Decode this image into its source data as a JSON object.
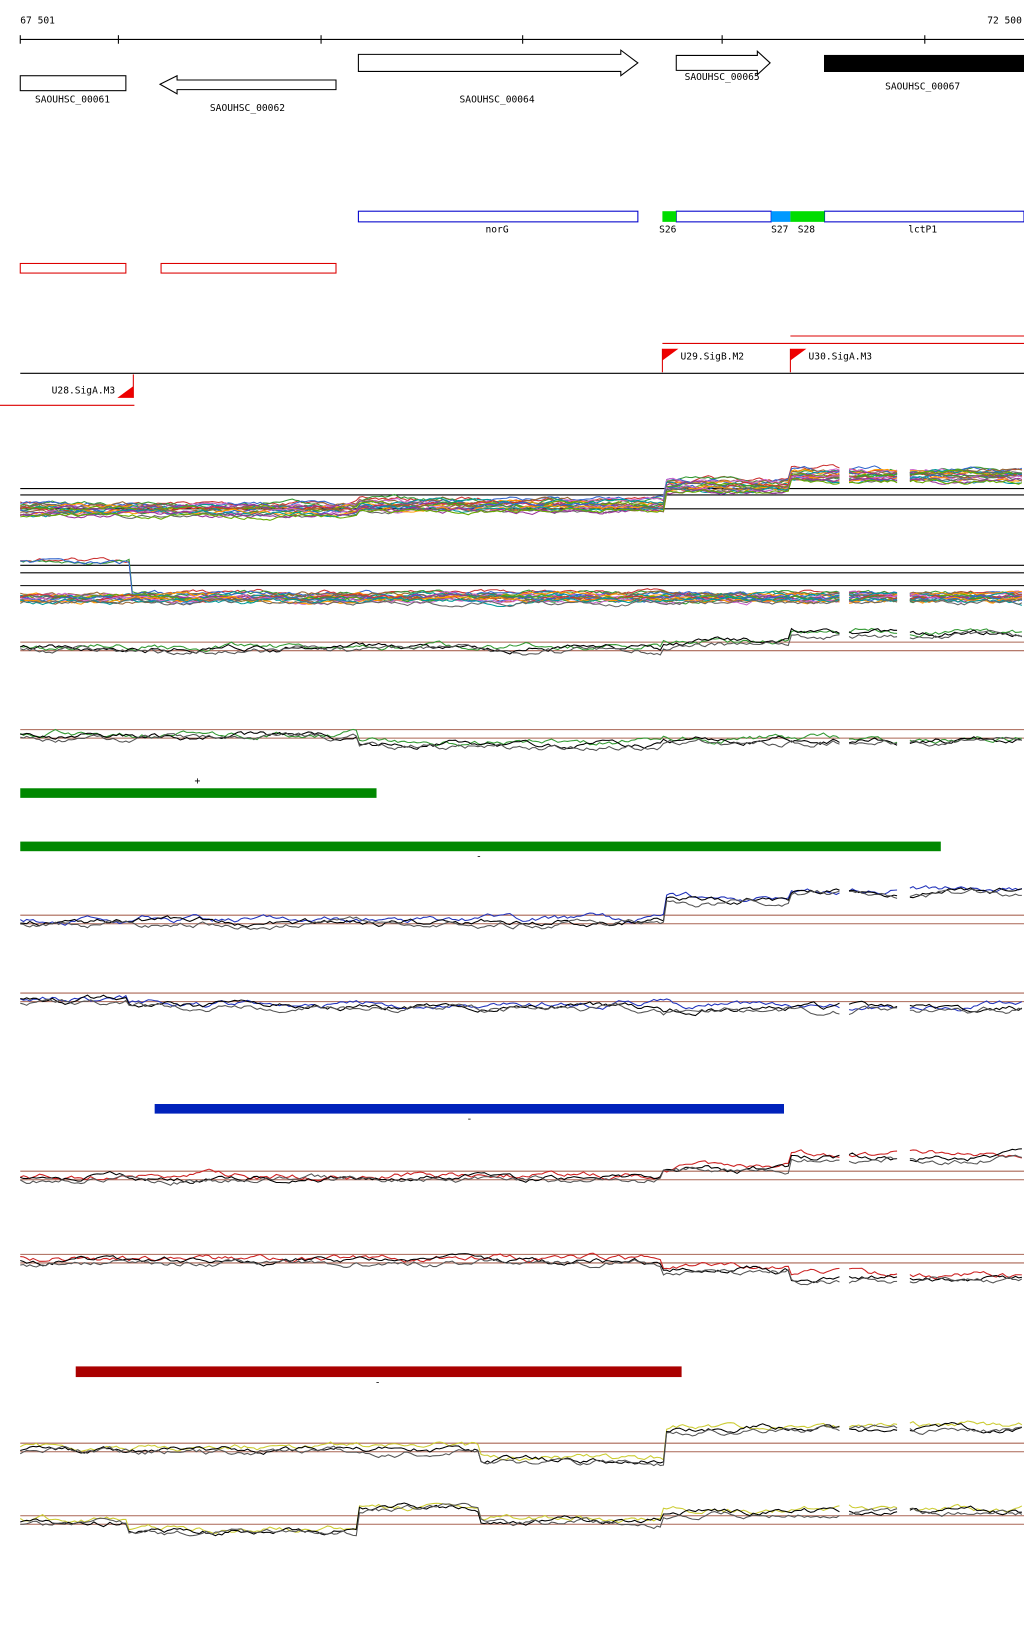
{
  "ruler": {
    "start": "67 501",
    "end": "72 500"
  },
  "genes": [
    {
      "label": "SAOUHSC_00061"
    },
    {
      "label": "SAOUHSC_00062"
    },
    {
      "label": "SAOUHSC_00064"
    },
    {
      "label": "SAOUHSC_00065"
    },
    {
      "label": "SAOUHSC_00067"
    }
  ],
  "segments": [
    {
      "label": "norG"
    },
    {
      "label": "S26"
    },
    {
      "label": "S27"
    },
    {
      "label": "S28"
    },
    {
      "label": "lctP1"
    }
  ],
  "promoters": [
    {
      "label": "U29.SigB.M2"
    },
    {
      "label": "U30.SigA.M3"
    },
    {
      "label": "U28.SigA.M3"
    }
  ],
  "strands": [
    "+",
    "-",
    "-",
    "-"
  ]
}
